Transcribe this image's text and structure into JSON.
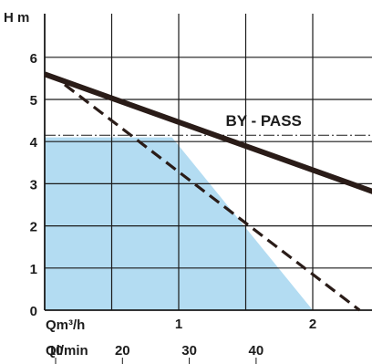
{
  "chart_data": {
    "type": "line",
    "title": "",
    "ylabel": "H m",
    "xlabel": "Qm³/h",
    "x_secondary_label": "Ql/min",
    "xlim": [
      0,
      2.9
    ],
    "ylim": [
      0,
      6.4
    ],
    "y_ticks": [
      {
        "value": 0,
        "label": "0"
      },
      {
        "value": 1,
        "label": "1"
      },
      {
        "value": 2,
        "label": "2"
      },
      {
        "value": 3,
        "label": "3"
      },
      {
        "value": 4,
        "label": "4"
      },
      {
        "value": 5,
        "label": "5"
      },
      {
        "value": 6,
        "label": "6"
      }
    ],
    "x_ticks": [
      {
        "value": 1,
        "label": "1"
      },
      {
        "value": 2,
        "label": "2"
      }
    ],
    "x_secondary_ticks": [
      {
        "value": 10,
        "label": "10"
      },
      {
        "value": 20,
        "label": "20"
      },
      {
        "value": 30,
        "label": "30"
      },
      {
        "value": 40,
        "label": "40"
      }
    ],
    "grid": true,
    "series": [
      {
        "style": "solid",
        "color": "#2a1c18",
        "x": [
          0,
          2.9
        ],
        "y": [
          5.6,
          2.3
        ]
      },
      {
        "style": "dashed",
        "color": "#2a1c18",
        "x": [
          0.15,
          2.35
        ],
        "y": [
          5.35,
          0.0
        ]
      }
    ],
    "shaded_region": {
      "color": "#b3dcf2",
      "x": [
        0,
        0,
        0.95,
        2.0
      ],
      "y": [
        0,
        4.1,
        4.1,
        0
      ]
    },
    "reference_line": {
      "y": 4.15,
      "style": "dash-dot"
    },
    "annotations": [
      {
        "text": "BY - PASS",
        "x": 1.35,
        "y": 4.5
      }
    ]
  },
  "colors": {
    "grid": "#1a1a1a",
    "curve": "#2a1c18",
    "fill": "#b3dcf2",
    "text": "#1c1c1c"
  }
}
